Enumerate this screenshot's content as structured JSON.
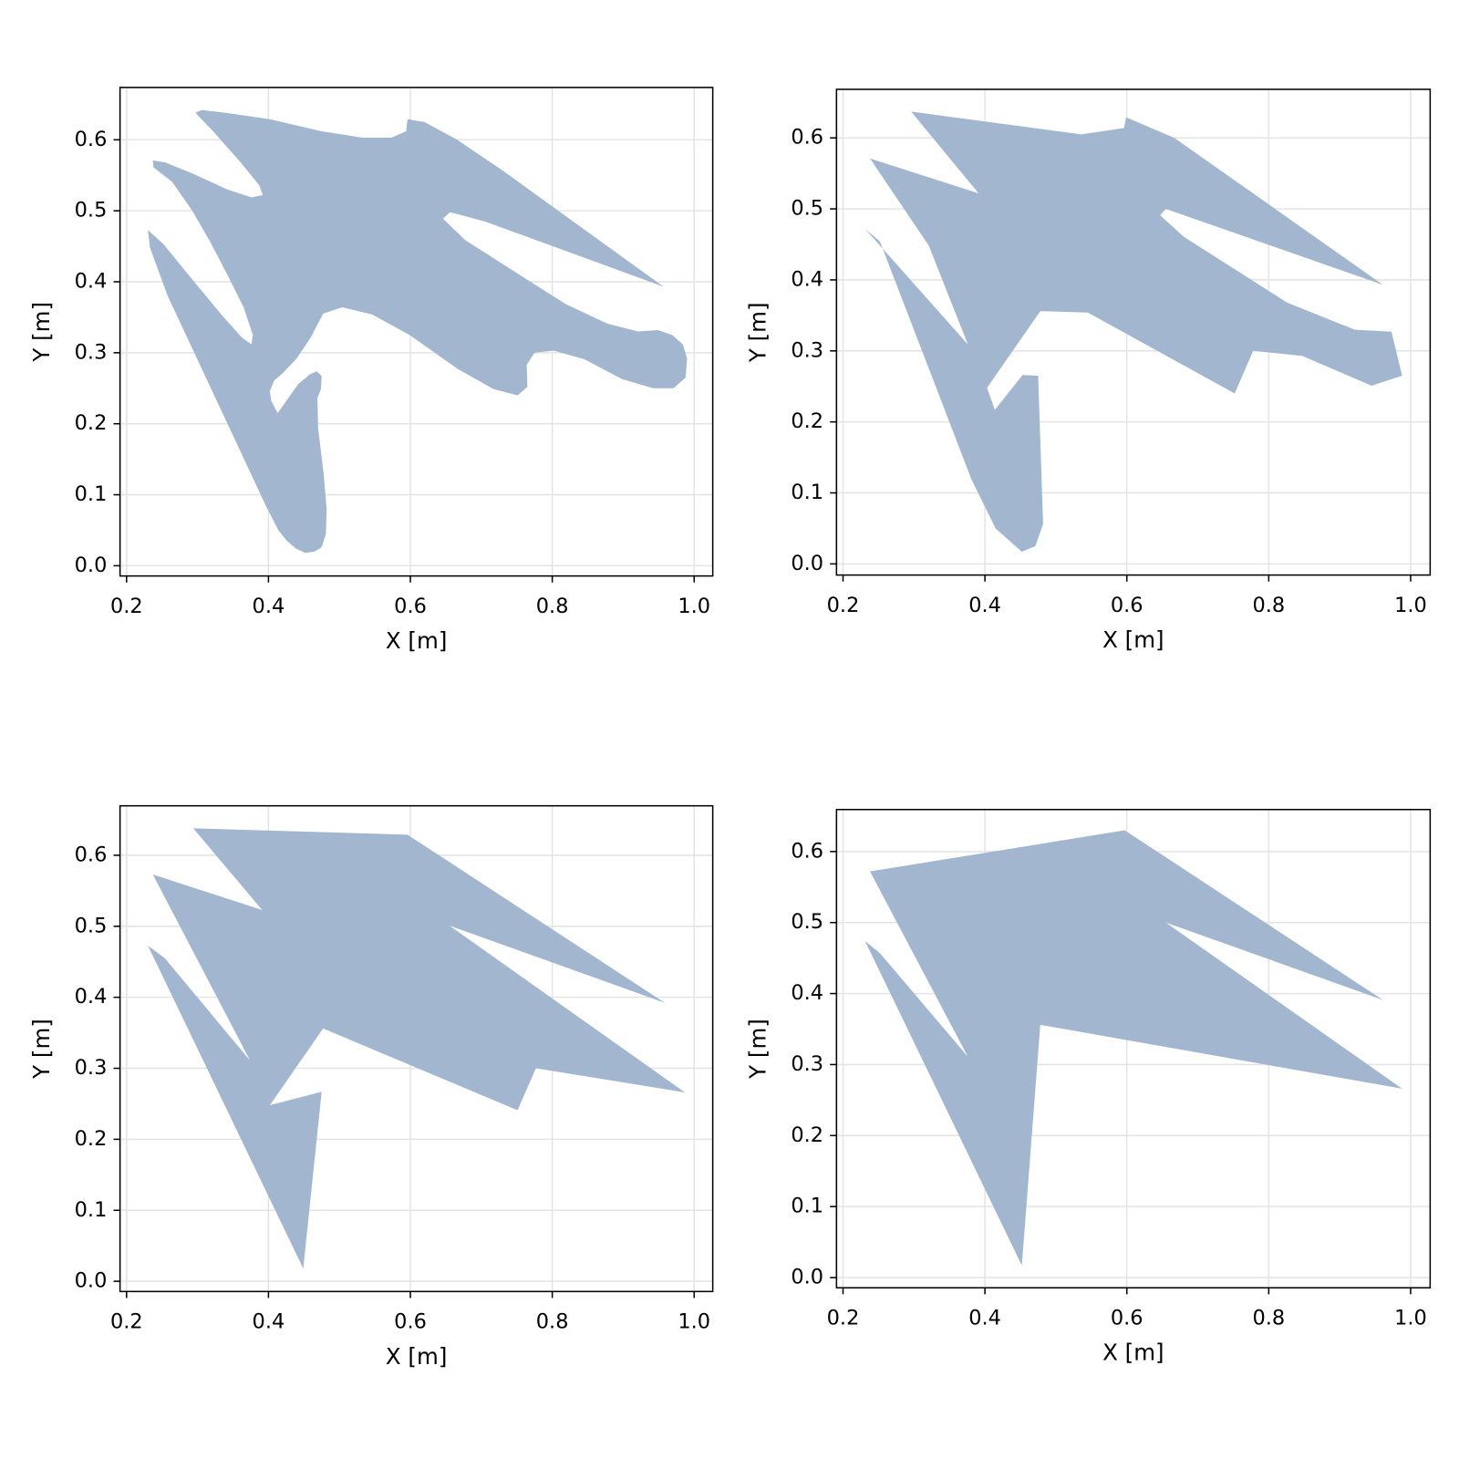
{
  "chart_data": [
    {
      "type": "polygon",
      "color": "#a2b7cf",
      "grid": true,
      "xlabel": "X [m]",
      "ylabel": "Y [m]",
      "xlim": [
        0.1908,
        1.0262
      ],
      "ylim": [
        -0.0144,
        0.6737
      ],
      "xticks": [
        0.2,
        0.4,
        0.6,
        0.8,
        {
          "value": 1,
          "label": "1.0"
        }
      ],
      "yticks": [
        {
          "value": 0,
          "label": "0.0"
        },
        0.1,
        0.2,
        0.3,
        0.4,
        0.5,
        0.6
      ],
      "x": [
        0.297,
        0.306,
        0.34,
        0.402,
        0.475,
        0.533,
        0.573,
        0.594,
        0.596,
        0.62,
        0.666,
        0.731,
        0.957,
        0.705,
        0.656,
        0.646,
        0.677,
        0.763,
        0.82,
        0.878,
        0.921,
        0.949,
        0.969,
        0.984,
        0.99,
        0.988,
        0.971,
        0.942,
        0.898,
        0.845,
        0.802,
        0.775,
        0.764,
        0.765,
        0.751,
        0.717,
        0.667,
        0.599,
        0.546,
        0.504,
        0.477,
        0.46,
        0.439,
        0.42,
        0.408,
        0.402,
        0.404,
        0.413,
        0.442,
        0.459,
        0.468,
        0.475,
        0.474,
        0.469,
        0.47,
        0.478,
        0.482,
        0.481,
        0.475,
        0.465,
        0.452,
        0.439,
        0.426,
        0.414,
        0.397,
        0.258,
        0.233,
        0.23,
        0.252,
        0.292,
        0.336,
        0.363,
        0.376,
        0.378,
        0.365,
        0.342,
        0.318,
        0.292,
        0.264,
        0.238,
        0.237,
        0.255,
        0.294,
        0.342,
        0.376,
        0.392,
        0.387,
        0.36,
        0.322
      ],
      "y": [
        0.638,
        0.642,
        0.638,
        0.629,
        0.612,
        0.603,
        0.603,
        0.612,
        0.629,
        0.625,
        0.6,
        0.556,
        0.393,
        0.485,
        0.498,
        0.489,
        0.459,
        0.404,
        0.368,
        0.341,
        0.33,
        0.332,
        0.325,
        0.312,
        0.292,
        0.265,
        0.25,
        0.25,
        0.263,
        0.291,
        0.303,
        0.3,
        0.283,
        0.252,
        0.24,
        0.249,
        0.277,
        0.325,
        0.354,
        0.364,
        0.355,
        0.322,
        0.291,
        0.271,
        0.261,
        0.246,
        0.232,
        0.215,
        0.256,
        0.27,
        0.274,
        0.267,
        0.249,
        0.236,
        0.194,
        0.128,
        0.079,
        0.045,
        0.026,
        0.02,
        0.018,
        0.024,
        0.035,
        0.05,
        0.083,
        0.38,
        0.448,
        0.473,
        0.453,
        0.404,
        0.351,
        0.321,
        0.312,
        0.325,
        0.364,
        0.41,
        0.456,
        0.501,
        0.541,
        0.561,
        0.571,
        0.568,
        0.552,
        0.53,
        0.519,
        0.522,
        0.536,
        0.569,
        0.612
      ]
    },
    {
      "type": "polygon",
      "color": "#a2b7cf",
      "grid": true,
      "xlabel": "X [m]",
      "ylabel": "Y [m]",
      "xlim": [
        0.1908,
        1.0275
      ],
      "ylim": [
        -0.0157,
        0.6684
      ],
      "xticks": [
        0.2,
        0.4,
        0.6,
        0.8,
        {
          "value": 1,
          "label": "1.0"
        }
      ],
      "yticks": [
        {
          "value": 0,
          "label": "0.0"
        },
        0.1,
        0.2,
        0.3,
        0.4,
        0.5,
        0.6
      ],
      "x": [
        0.296,
        0.391,
        0.238,
        0.321,
        0.376,
        0.231,
        0.252,
        0.381,
        0.415,
        0.452,
        0.471,
        0.482,
        0.475,
        0.453,
        0.414,
        0.403,
        0.478,
        0.545,
        0.752,
        0.778,
        0.847,
        0.945,
        0.988,
        0.973,
        0.921,
        0.826,
        0.68,
        0.647,
        0.655,
        0.961,
        0.667,
        0.599,
        0.596,
        0.536
      ],
      "y": [
        0.637,
        0.522,
        0.571,
        0.448,
        0.309,
        0.472,
        0.454,
        0.119,
        0.05,
        0.017,
        0.025,
        0.056,
        0.265,
        0.266,
        0.217,
        0.248,
        0.356,
        0.354,
        0.24,
        0.3,
        0.293,
        0.251,
        0.265,
        0.327,
        0.33,
        0.368,
        0.461,
        0.491,
        0.5,
        0.393,
        0.6,
        0.629,
        0.614,
        0.605
      ]
    },
    {
      "type": "polygon",
      "color": "#a2b7cf",
      "grid": true,
      "xlabel": "X [m]",
      "ylabel": "Y [m]",
      "xlim": [
        0.1908,
        1.0262
      ],
      "ylim": [
        -0.0144,
        0.6697
      ],
      "xticks": [
        0.2,
        0.4,
        0.6,
        0.8,
        {
          "value": 1,
          "label": "1.0"
        }
      ],
      "yticks": [
        {
          "value": 0,
          "label": "0.0"
        },
        0.1,
        0.2,
        0.3,
        0.4,
        0.5,
        0.6
      ],
      "x": [
        0.294,
        0.596,
        0.959,
        0.655,
        0.987,
        0.777,
        0.751,
        0.477,
        0.402,
        0.475,
        0.449,
        0.23,
        0.254,
        0.374,
        0.237,
        0.391
      ],
      "y": [
        0.638,
        0.629,
        0.392,
        0.501,
        0.266,
        0.3,
        0.241,
        0.356,
        0.248,
        0.267,
        0.018,
        0.473,
        0.455,
        0.311,
        0.573,
        0.523
      ]
    },
    {
      "type": "polygon",
      "color": "#a2b7cf",
      "grid": true,
      "xlabel": "X [m]",
      "ylabel": "Y [m]",
      "xlim": [
        0.1908,
        1.0275
      ],
      "ylim": [
        -0.0144,
        0.6592
      ],
      "xticks": [
        0.2,
        0.4,
        0.6,
        0.8,
        {
          "value": 1,
          "label": "1.0"
        }
      ],
      "yticks": [
        {
          "value": 0,
          "label": "0.0"
        },
        0.1,
        0.2,
        0.3,
        0.4,
        0.5,
        0.6
      ],
      "x": [
        0.238,
        0.597,
        0.961,
        0.655,
        0.988,
        0.478,
        0.452,
        0.231,
        0.252,
        0.376
      ],
      "y": [
        0.572,
        0.63,
        0.391,
        0.5,
        0.266,
        0.356,
        0.017,
        0.474,
        0.457,
        0.311
      ]
    }
  ]
}
